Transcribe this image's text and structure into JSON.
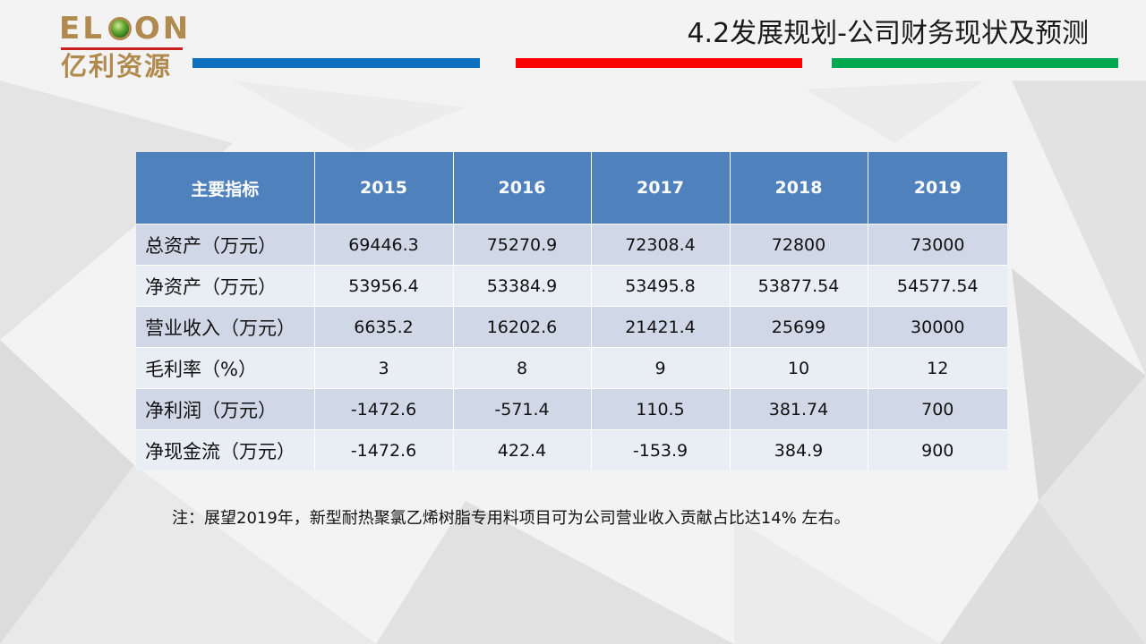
{
  "logo": {
    "en_part1": "EL",
    "en_part2": "ON",
    "cn": "亿利资源"
  },
  "header": {
    "title": "4.2发展规划-公司财务现状及预测"
  },
  "colors": {
    "blue": "#0f6fbf",
    "red": "#ff0000",
    "green": "#00a850",
    "table_header": "#4f81bd",
    "logo_gold": "#b08a4e"
  },
  "table": {
    "headers": [
      "主要指标",
      "2015",
      "2016",
      "2017",
      "2018",
      "2019"
    ],
    "rows": [
      {
        "label": "总资产（万元）",
        "values": [
          "69446.3",
          "75270.9",
          "72308.4",
          "72800",
          "73000"
        ]
      },
      {
        "label": "净资产（万元）",
        "values": [
          "53956.4",
          "53384.9",
          "53495.8",
          "53877.54",
          "54577.54"
        ]
      },
      {
        "label": "营业收入（万元）",
        "values": [
          "6635.2",
          "16202.6",
          "21421.4",
          "25699",
          "30000"
        ]
      },
      {
        "label": "毛利率（%）",
        "values": [
          "3",
          "8",
          "9",
          "10",
          "12"
        ]
      },
      {
        "label": "净利润（万元）",
        "values": [
          "-1472.6",
          "-571.4",
          "110.5",
          "381.74",
          "700"
        ]
      },
      {
        "label": "净现金流（万元）",
        "values": [
          "-1472.6",
          "422.4",
          "-153.9",
          "384.9",
          "900"
        ]
      }
    ]
  },
  "note": "注：展望2019年，新型耐热聚氯乙烯树脂专用料项目可为公司营业收入贡献占比达14%  左右。"
}
